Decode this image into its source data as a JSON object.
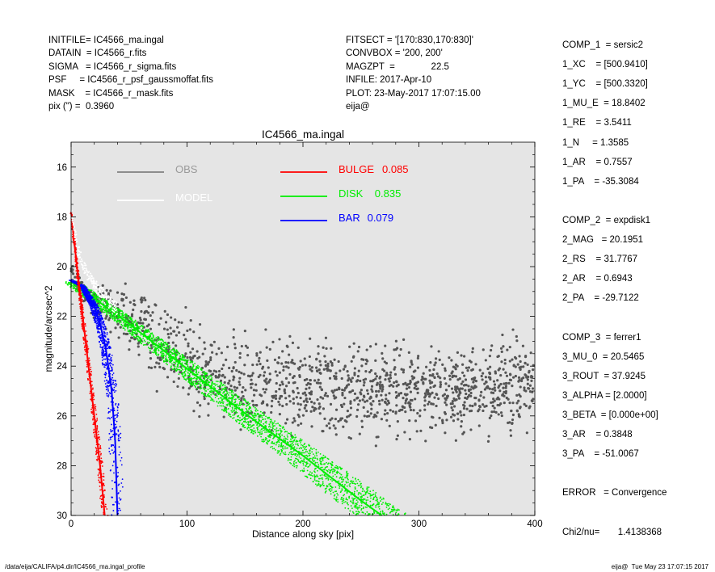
{
  "header_left": [
    "INITFILE= IC4566_ma.ingal",
    "DATAIN  = IC4566_r.fits",
    "SIGMA   = IC4566_r_sigma.fits",
    "PSF     = IC4566_r_psf_gaussmoffat.fits",
    "MASK    = IC4566_r_mask.fits",
    "pix (\") =  0.3960"
  ],
  "header_mid": [
    "FITSECT = '[170:830,170:830]'",
    "CONVBOX = '200, 200'",
    "MAGZPT  =              22.5",
    "INFILE: 2017-Apr-10",
    "PLOT: 23-May-2017 17:07:15.00",
    "eija@"
  ],
  "params": [
    "COMP_1  = sersic2",
    "1_XC    = [500.9410]",
    "1_YC    = [500.3320]",
    "1_MU_E  = 18.8402",
    "1_RE    = 3.5411",
    "1_N     = 1.3585",
    "1_AR    = 0.7557",
    "1_PA    = -35.3084",
    "",
    "COMP_2  = expdisk1",
    "2_MAG   = 20.1951",
    "2_RS    = 31.7767",
    "2_AR    = 0.6943",
    "2_PA    = -29.7122",
    "",
    "COMP_3  = ferrer1",
    "3_MU_0  = 20.5465",
    "3_ROUT  = 37.9245",
    "3_ALPHA = [2.0000]",
    "3_BETA  = [0.000e+00]",
    "3_AR    = 0.3848",
    "3_PA    = -51.0067",
    "",
    "ERROR   = Convergence",
    "",
    "Chi2/nu=       1.4138368"
  ],
  "footer_left": "/data/eija/CALIFA/p4.dir/IC4566_ma.ingal_profile",
  "footer_right": "eija@  Tue May 23 17:07:15 2017",
  "chart_data": {
    "type": "scatter",
    "title": "IC4566_ma.ingal",
    "xlabel": "Distance along sky [pix]",
    "ylabel": "magnitude/arcsec^2",
    "xlim": [
      0,
      400
    ],
    "ylim": [
      30,
      15
    ],
    "y_inverted": true,
    "xticks": [
      0,
      100,
      200,
      300,
      400
    ],
    "yticks": [
      16,
      18,
      20,
      22,
      24,
      26,
      28,
      30
    ],
    "plot_background": "#e5e5e5",
    "legend": [
      {
        "label": "OBS",
        "value": "",
        "color": "#808080"
      },
      {
        "label": "MODEL",
        "value": "",
        "color": "#ffffff"
      },
      {
        "label": "BULGE",
        "value": "0.085",
        "color": "#ff0000"
      },
      {
        "label": "DISK",
        "value": "0.835",
        "color": "#00ee00"
      },
      {
        "label": "BAR",
        "value": "0.079",
        "color": "#0000ff"
      }
    ],
    "series": [
      {
        "name": "OBS",
        "color": "#555555",
        "points": [
          [
            1,
            20.2
          ],
          [
            3,
            20.4
          ],
          [
            5,
            20.6
          ],
          [
            8,
            20.8
          ],
          [
            12,
            21.0
          ],
          [
            18,
            21.3
          ],
          [
            25,
            21.5
          ],
          [
            35,
            21.6
          ],
          [
            45,
            22.0
          ],
          [
            55,
            22.4
          ],
          [
            70,
            22.9
          ],
          [
            85,
            23.3
          ],
          [
            100,
            23.8
          ],
          [
            120,
            24.2
          ],
          [
            140,
            24.4
          ],
          [
            160,
            24.5
          ],
          [
            180,
            24.7
          ],
          [
            200,
            24.8
          ],
          [
            220,
            24.9
          ],
          [
            250,
            24.9
          ],
          [
            280,
            25.0
          ],
          [
            310,
            25.0
          ],
          [
            340,
            25.0
          ],
          [
            370,
            24.8
          ],
          [
            400,
            24.8
          ]
        ]
      },
      {
        "name": "MODEL",
        "color": "#ffffff",
        "points": [
          [
            0,
            17.8
          ],
          [
            3,
            18.6
          ],
          [
            6,
            19.3
          ],
          [
            10,
            19.9
          ],
          [
            15,
            20.4
          ],
          [
            20,
            20.7
          ],
          [
            25,
            21.0
          ],
          [
            30,
            21.3
          ],
          [
            40,
            21.7
          ]
        ]
      },
      {
        "name": "BULGE",
        "color": "#ff0000",
        "points": [
          [
            0,
            17.8
          ],
          [
            5,
            20.0
          ],
          [
            10,
            22.0
          ],
          [
            15,
            24.0
          ],
          [
            20,
            26.0
          ],
          [
            25,
            28.0
          ],
          [
            29,
            30.0
          ]
        ]
      },
      {
        "name": "DISK",
        "color": "#00ee00",
        "points": [
          [
            0,
            20.6
          ],
          [
            50,
            22.3
          ],
          [
            100,
            24.1
          ],
          [
            150,
            25.9
          ],
          [
            200,
            27.6
          ],
          [
            250,
            29.4
          ],
          [
            268,
            30.0
          ]
        ]
      },
      {
        "name": "BAR",
        "color": "#0000ff",
        "points": [
          [
            0,
            20.55
          ],
          [
            10,
            20.8
          ],
          [
            20,
            21.6
          ],
          [
            25,
            22.3
          ],
          [
            30,
            23.3
          ],
          [
            35,
            25.0
          ],
          [
            38,
            27.0
          ],
          [
            40,
            30.0
          ]
        ]
      }
    ]
  }
}
